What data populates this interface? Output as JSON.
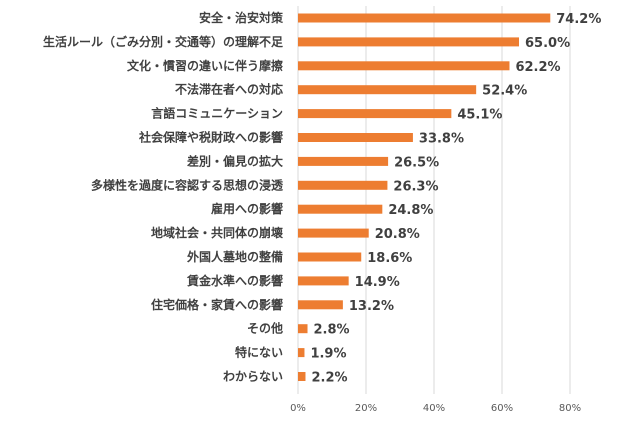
{
  "chart_data": {
    "type": "bar",
    "orientation": "horizontal",
    "categories": [
      "安全・治安対策",
      "生活ルール（ごみ分別・交通等）の理解不足",
      "文化・慣習の違いに伴う摩擦",
      "不法滞在者への対応",
      "言語コミュニケーション",
      "社会保障や税財政への影響",
      "差別・偏見の拡大",
      "多様性を過度に容認する思想の浸透",
      "雇用への影響",
      "地域社会・共同体の崩壊",
      "外国人墓地の整備",
      "賃金水準への影響",
      "住宅価格・家賃への影響",
      "その他",
      "特にない",
      "わからない"
    ],
    "values": [
      74.2,
      65.0,
      62.2,
      52.4,
      45.1,
      33.8,
      26.5,
      26.3,
      24.8,
      20.8,
      18.6,
      14.9,
      13.2,
      2.8,
      1.9,
      2.2
    ],
    "value_labels": [
      "74.2%",
      "65.0%",
      "62.2%",
      "52.4%",
      "45.1%",
      "33.8%",
      "26.5%",
      "26.3%",
      "24.8%",
      "20.8%",
      "18.6%",
      "14.9%",
      "13.2%",
      "2.8%",
      "1.9%",
      "2.2%"
    ],
    "xlim": [
      0,
      80
    ],
    "x_ticks": [
      "0%",
      "20%",
      "40%",
      "60%",
      "80%"
    ],
    "x_tick_values": [
      0,
      20,
      40,
      60,
      80
    ],
    "grid": true,
    "bar_color": "#ED7D31",
    "grid_color": "#D9D9D9",
    "title": "",
    "xlabel": "",
    "ylabel": ""
  }
}
